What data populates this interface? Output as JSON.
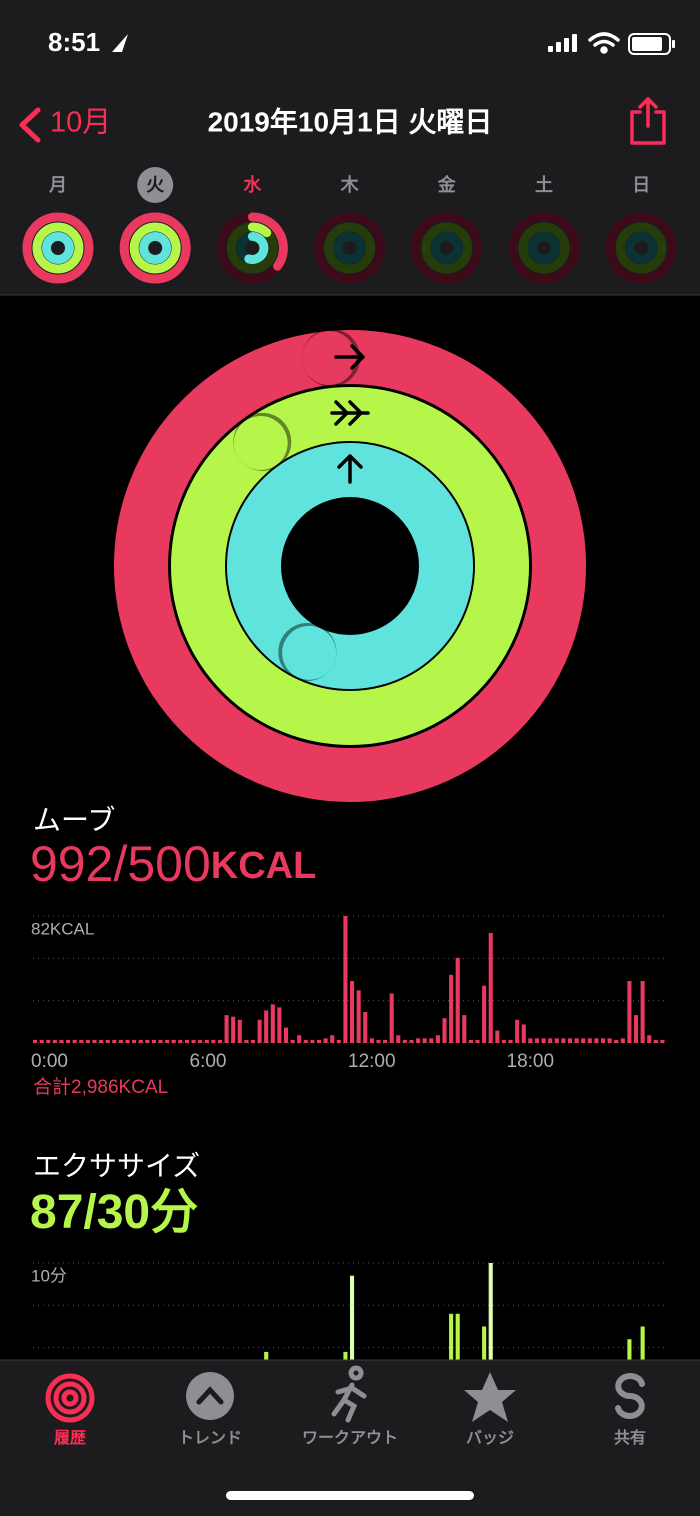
{
  "status_bar": {
    "time": "8:51"
  },
  "nav": {
    "back": "10月",
    "title": "2019年10月1日 火曜日"
  },
  "week": {
    "days": [
      "月",
      "火",
      "水",
      "木",
      "金",
      "土",
      "日"
    ],
    "selected": 1,
    "today": 2,
    "rings": [
      [
        1.3,
        1.6,
        1.2
      ],
      [
        1.984,
        2.9,
        1.57
      ],
      [
        0.35,
        0.12,
        0.55
      ],
      [
        0,
        0,
        0
      ],
      [
        0,
        0,
        0
      ],
      [
        0,
        0,
        0
      ],
      [
        0,
        0,
        0
      ]
    ]
  },
  "rings": {
    "stand_ratio": 1.57,
    "stand_color": "#5fe3dc"
  },
  "move": {
    "label": "ムーブ",
    "value": 992,
    "separator": "/",
    "goal": 500,
    "unit": "KCAL",
    "color": "#e8395f",
    "chart": {
      "type": "bar",
      "values": [
        2,
        2,
        2,
        2,
        2,
        2,
        2,
        2,
        2,
        2,
        2,
        2,
        2,
        2,
        2,
        2,
        2,
        2,
        2,
        2,
        2,
        2,
        2,
        2,
        2,
        2,
        2,
        2,
        2,
        18,
        17,
        15,
        2,
        2,
        15,
        21,
        25,
        23,
        10,
        2,
        5,
        2,
        2,
        2,
        3,
        5,
        2,
        82,
        40,
        34,
        20,
        3,
        2,
        2,
        32,
        5,
        2,
        2,
        3,
        3,
        3,
        5,
        16,
        44,
        55,
        18,
        2,
        2,
        37,
        71,
        8,
        2,
        2,
        15,
        12,
        3,
        3,
        3,
        3,
        3,
        3,
        3,
        3,
        3,
        3,
        3,
        3,
        3,
        2,
        3,
        40,
        18,
        40,
        5,
        2,
        2
      ],
      "ylim": [
        0,
        82
      ],
      "yticks": [
        {
          "value": 82,
          "label": "82KCAL"
        }
      ],
      "xlim": [
        0,
        24
      ],
      "xticks": [
        {
          "value": 0,
          "label": "0:00"
        },
        {
          "value": 6,
          "label": "6:00"
        },
        {
          "value": 12,
          "label": "12:00"
        },
        {
          "value": 18,
          "label": "18:00"
        }
      ]
    },
    "total": "合計2,986KCAL"
  },
  "exercise": {
    "label": "エクササイズ",
    "value": 87,
    "separator": "/",
    "goal": 30,
    "unit": "分",
    "color": "#b6f54a",
    "chart": {
      "type": "bar",
      "values": [
        0,
        0,
        0,
        0,
        0,
        0,
        0,
        0,
        0,
        0,
        0,
        0,
        0,
        0,
        0,
        0,
        0,
        0,
        0,
        0,
        0,
        0,
        0,
        0,
        0,
        0,
        0,
        0,
        0,
        0,
        0,
        0,
        0,
        0,
        0,
        3,
        0,
        0,
        0,
        0,
        0,
        0,
        0,
        0,
        0,
        0,
        0,
        3,
        9,
        0,
        0,
        2,
        0,
        0,
        2,
        0,
        0,
        0,
        0,
        0,
        0,
        0,
        0,
        6,
        6,
        0,
        0,
        0,
        5,
        10,
        0,
        0,
        0,
        2,
        0,
        0,
        0,
        0,
        0,
        0,
        0,
        0,
        0,
        0,
        0,
        0,
        0,
        0,
        0,
        0,
        4,
        0,
        5,
        0,
        0,
        0
      ],
      "ylim": [
        0,
        10
      ],
      "yticks": [
        {
          "value": 10,
          "label": "10分"
        }
      ],
      "xlim": [
        0,
        24
      ]
    }
  },
  "tab_bar": {
    "items": [
      "履歴",
      "トレンド",
      "ワークアウト",
      "バッジ",
      "共有"
    ],
    "selected": 0
  }
}
